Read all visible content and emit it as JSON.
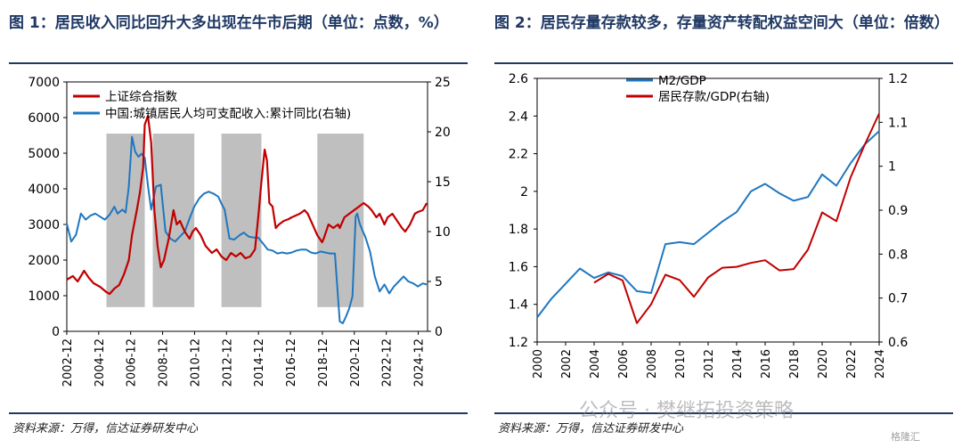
{
  "panel1": {
    "title": "图 1：居民收入同比回升大多出现在牛市后期（单位：点数，%）",
    "source": "资料来源：万得，信达证券研发中心"
  },
  "panel2": {
    "title": "图 2：居民存量存款较多，存量资产转配权益空间大（单位：倍数）",
    "source": "资料来源：万得，信达证券研发中心"
  },
  "watermark": "公众号 · 樊继拓投资策略",
  "corner_logo": "格隆汇",
  "colors": {
    "blue": "#1F77C0",
    "red": "#C00000",
    "shade": "#BFBFBF",
    "title": "#1F3864"
  },
  "chart_data": [
    {
      "type": "line",
      "legend_position": "top-left",
      "x_ticks": [
        "2002-12",
        "2004-12",
        "2006-12",
        "2008-12",
        "2010-12",
        "2012-12",
        "2014-12",
        "2016-12",
        "2018-12",
        "2020-12",
        "2022-12",
        "2024-12"
      ],
      "x_range": [
        2002.92,
        2025.5
      ],
      "ylim_left": [
        0,
        7000
      ],
      "yticks_left": [
        0,
        1000,
        2000,
        3000,
        4000,
        5000,
        6000,
        7000
      ],
      "ylim_right": [
        0,
        25
      ],
      "yticks_right": [
        0,
        5,
        10,
        15,
        20,
        25
      ],
      "shaded_periods": [
        [
          2005.4,
          2007.8
        ],
        [
          2008.3,
          2010.9
        ],
        [
          2012.6,
          2015.1
        ],
        [
          2018.6,
          2021.5
        ]
      ],
      "series": [
        {
          "name": "上证综合指数",
          "axis": "left",
          "color": "#C00000",
          "x": [
            2002.92,
            2003.3,
            2003.6,
            2004.0,
            2004.3,
            2004.6,
            2005.0,
            2005.4,
            2005.6,
            2005.9,
            2006.2,
            2006.5,
            2006.8,
            2007.0,
            2007.3,
            2007.5,
            2007.7,
            2007.8,
            2008.0,
            2008.2,
            2008.4,
            2008.6,
            2008.8,
            2009.0,
            2009.3,
            2009.6,
            2009.8,
            2010.0,
            2010.3,
            2010.6,
            2010.8,
            2011.0,
            2011.3,
            2011.6,
            2011.8,
            2012.0,
            2012.3,
            2012.6,
            2012.9,
            2013.2,
            2013.5,
            2013.8,
            2014.1,
            2014.4,
            2014.7,
            2014.9,
            2015.1,
            2015.3,
            2015.45,
            2015.6,
            2015.8,
            2016.0,
            2016.2,
            2016.5,
            2016.8,
            2017.0,
            2017.5,
            2017.8,
            2018.0,
            2018.3,
            2018.6,
            2018.9,
            2019.0,
            2019.3,
            2019.6,
            2019.9,
            2020.0,
            2020.3,
            2020.6,
            2020.9,
            2021.2,
            2021.5,
            2021.8,
            2022.0,
            2022.3,
            2022.5,
            2022.8,
            2023.0,
            2023.3,
            2023.6,
            2023.9,
            2024.1,
            2024.4,
            2024.7,
            2024.9,
            2025.2,
            2025.45
          ],
          "y": [
            1450,
            1550,
            1400,
            1700,
            1500,
            1350,
            1250,
            1100,
            1050,
            1200,
            1300,
            1600,
            2000,
            2700,
            3400,
            3900,
            4600,
            5800,
            6050,
            5300,
            3400,
            2400,
            1800,
            2000,
            2600,
            3400,
            3000,
            3100,
            2800,
            2600,
            2800,
            2900,
            2700,
            2400,
            2300,
            2200,
            2300,
            2100,
            2000,
            2200,
            2100,
            2200,
            2050,
            2100,
            2300,
            3200,
            4200,
            5100,
            4800,
            3600,
            3500,
            2900,
            3000,
            3100,
            3150,
            3200,
            3300,
            3400,
            3300,
            3000,
            2700,
            2500,
            2600,
            3000,
            2900,
            3000,
            2900,
            3200,
            3300,
            3400,
            3500,
            3600,
            3500,
            3400,
            3200,
            3300,
            3000,
            3200,
            3300,
            3100,
            2900,
            2800,
            3000,
            3300,
            3350,
            3400,
            3600
          ]
        },
        {
          "name": "中国:城镇居民人均可支配收入:累计同比(右轴)",
          "axis": "right",
          "color": "#1F77C0",
          "x": [
            2002.92,
            2003.2,
            2003.5,
            2003.8,
            2004.1,
            2004.4,
            2004.7,
            2005.0,
            2005.3,
            2005.6,
            2005.9,
            2006.1,
            2006.4,
            2006.6,
            2006.8,
            2007.0,
            2007.2,
            2007.4,
            2007.6,
            2007.8,
            2008.0,
            2008.2,
            2008.5,
            2008.8,
            2009.1,
            2009.4,
            2009.7,
            2010.0,
            2010.3,
            2010.6,
            2010.9,
            2011.2,
            2011.5,
            2011.8,
            2012.1,
            2012.4,
            2012.6,
            2012.8,
            2013.1,
            2013.4,
            2013.7,
            2014.0,
            2014.3,
            2014.6,
            2014.9,
            2015.2,
            2015.5,
            2015.8,
            2016.1,
            2016.4,
            2016.7,
            2017.0,
            2017.3,
            2017.6,
            2017.9,
            2018.2,
            2018.5,
            2018.8,
            2019.1,
            2019.4,
            2019.7,
            2020.0,
            2020.2,
            2020.4,
            2020.6,
            2020.8,
            2021.0,
            2021.1,
            2021.25,
            2021.4,
            2021.6,
            2021.9,
            2022.2,
            2022.5,
            2022.8,
            2023.1,
            2023.4,
            2023.7,
            2024.0,
            2024.3,
            2024.6,
            2024.9,
            2025.2,
            2025.45
          ],
          "y": [
            10.8,
            9.0,
            9.7,
            11.8,
            11.2,
            11.6,
            11.8,
            11.5,
            11.2,
            11.7,
            12.5,
            11.8,
            12.2,
            11.9,
            14.5,
            19.5,
            18.0,
            17.5,
            17.8,
            17.4,
            14.6,
            12.2,
            14.5,
            14.7,
            10.0,
            9.3,
            9.0,
            9.5,
            10.0,
            11.3,
            12.5,
            13.3,
            13.8,
            14.0,
            13.8,
            13.5,
            12.8,
            12.2,
            9.3,
            9.2,
            9.6,
            9.9,
            9.5,
            9.4,
            9.4,
            8.8,
            8.2,
            8.1,
            7.8,
            7.9,
            7.8,
            7.9,
            8.1,
            8.2,
            8.2,
            7.9,
            7.8,
            8.0,
            7.9,
            7.8,
            7.8,
            1.0,
            0.8,
            1.5,
            2.3,
            3.5,
            11.5,
            11.8,
            10.8,
            10.2,
            9.5,
            8.0,
            5.5,
            4.0,
            4.7,
            3.8,
            4.5,
            5.0,
            5.5,
            5.0,
            4.8,
            4.5,
            4.8,
            4.7
          ]
        }
      ]
    },
    {
      "type": "line",
      "legend_position": "top-center",
      "x": [
        2000,
        2001,
        2002,
        2003,
        2004,
        2005,
        2006,
        2007,
        2008,
        2009,
        2010,
        2011,
        2012,
        2013,
        2014,
        2015,
        2016,
        2017,
        2018,
        2019,
        2020,
        2021,
        2022,
        2023,
        2024
      ],
      "x_ticks": [
        2000,
        2002,
        2004,
        2006,
        2008,
        2010,
        2012,
        2014,
        2016,
        2018,
        2020,
        2022,
        2024
      ],
      "ylim_left": [
        1.2,
        2.6
      ],
      "yticks_left": [
        "1.2",
        "1.4",
        "1.6",
        "1.8",
        "2",
        "2.2",
        "2.4",
        "2.6"
      ],
      "ylim_right": [
        0.6,
        1.2
      ],
      "yticks_right": [
        "0.6",
        "0.7",
        "0.8",
        "0.9",
        "1",
        "1.1",
        "1.2"
      ],
      "series": [
        {
          "name": "M2/GDP",
          "axis": "left",
          "color": "#1F77C0",
          "values": [
            1.33,
            1.43,
            1.51,
            1.59,
            1.54,
            1.57,
            1.55,
            1.47,
            1.46,
            1.72,
            1.73,
            1.72,
            1.78,
            1.84,
            1.89,
            2.0,
            2.04,
            1.99,
            1.95,
            1.97,
            2.09,
            2.03,
            2.15,
            2.25,
            2.32
          ]
        },
        {
          "name": "居民存款/GDP(右轴)",
          "axis": "right",
          "color": "#C00000",
          "values": [
            null,
            null,
            null,
            null,
            0.735,
            0.755,
            0.74,
            0.643,
            0.686,
            0.753,
            0.741,
            0.703,
            0.747,
            0.769,
            0.771,
            0.78,
            0.786,
            0.763,
            0.766,
            0.81,
            0.895,
            0.875,
            0.975,
            1.05,
            1.12
          ]
        }
      ]
    }
  ]
}
